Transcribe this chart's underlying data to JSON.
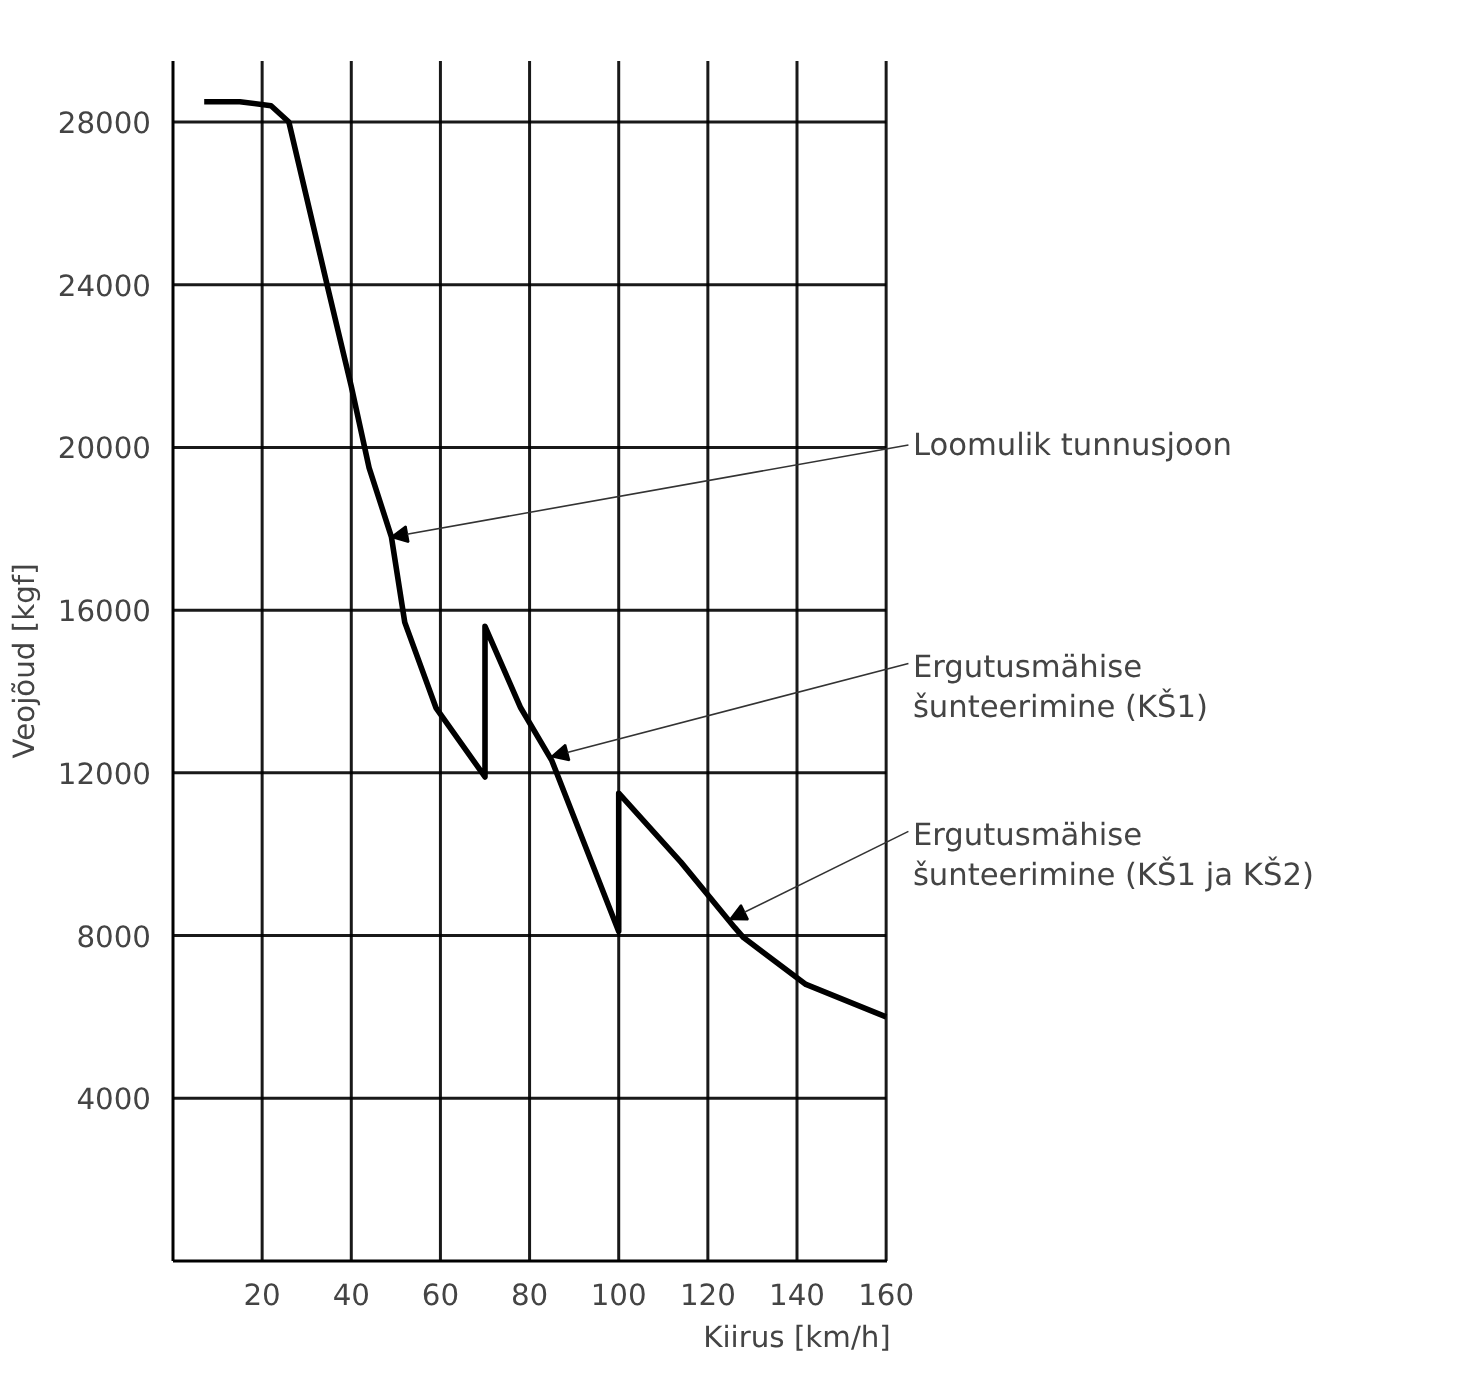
{
  "chart_data": {
    "type": "line",
    "xlabel": "Kiirus [km/h]",
    "ylabel": "Veojõud [kgf]",
    "x": [
      7,
      15,
      22,
      26,
      35,
      40,
      44,
      49,
      52,
      59,
      70,
      70,
      78,
      85,
      100,
      100,
      114,
      126,
      128,
      142,
      160
    ],
    "series": [
      {
        "color": "#000000",
        "values": [
          28500,
          28500,
          28400,
          28000,
          23800,
          21500,
          19500,
          17800,
          15700,
          13600,
          11900,
          15600,
          13600,
          12300,
          8100,
          11500,
          9800,
          8200,
          7950,
          6800,
          6000
        ]
      }
    ],
    "xlim": [
      0,
      160
    ],
    "ylim": [
      0,
      29500
    ],
    "xticks": [
      20,
      40,
      60,
      80,
      100,
      120,
      140,
      160
    ],
    "yticks": [
      4000,
      8000,
      12000,
      16000,
      20000,
      24000,
      28000
    ],
    "grid": true,
    "marker": "none",
    "line_style": "solid",
    "annotations": [
      {
        "text": "Loomulik tunnusjoon",
        "x": 49,
        "y": 17800
      },
      {
        "text": "Ergutusmähise\nšunteerimine (KŠ1)",
        "x": 85,
        "y": 12400
      },
      {
        "text": "Ergutusmähise\nšunteerimine (KŠ1 ja KŠ2)",
        "x": 125,
        "y": 8400
      }
    ]
  }
}
